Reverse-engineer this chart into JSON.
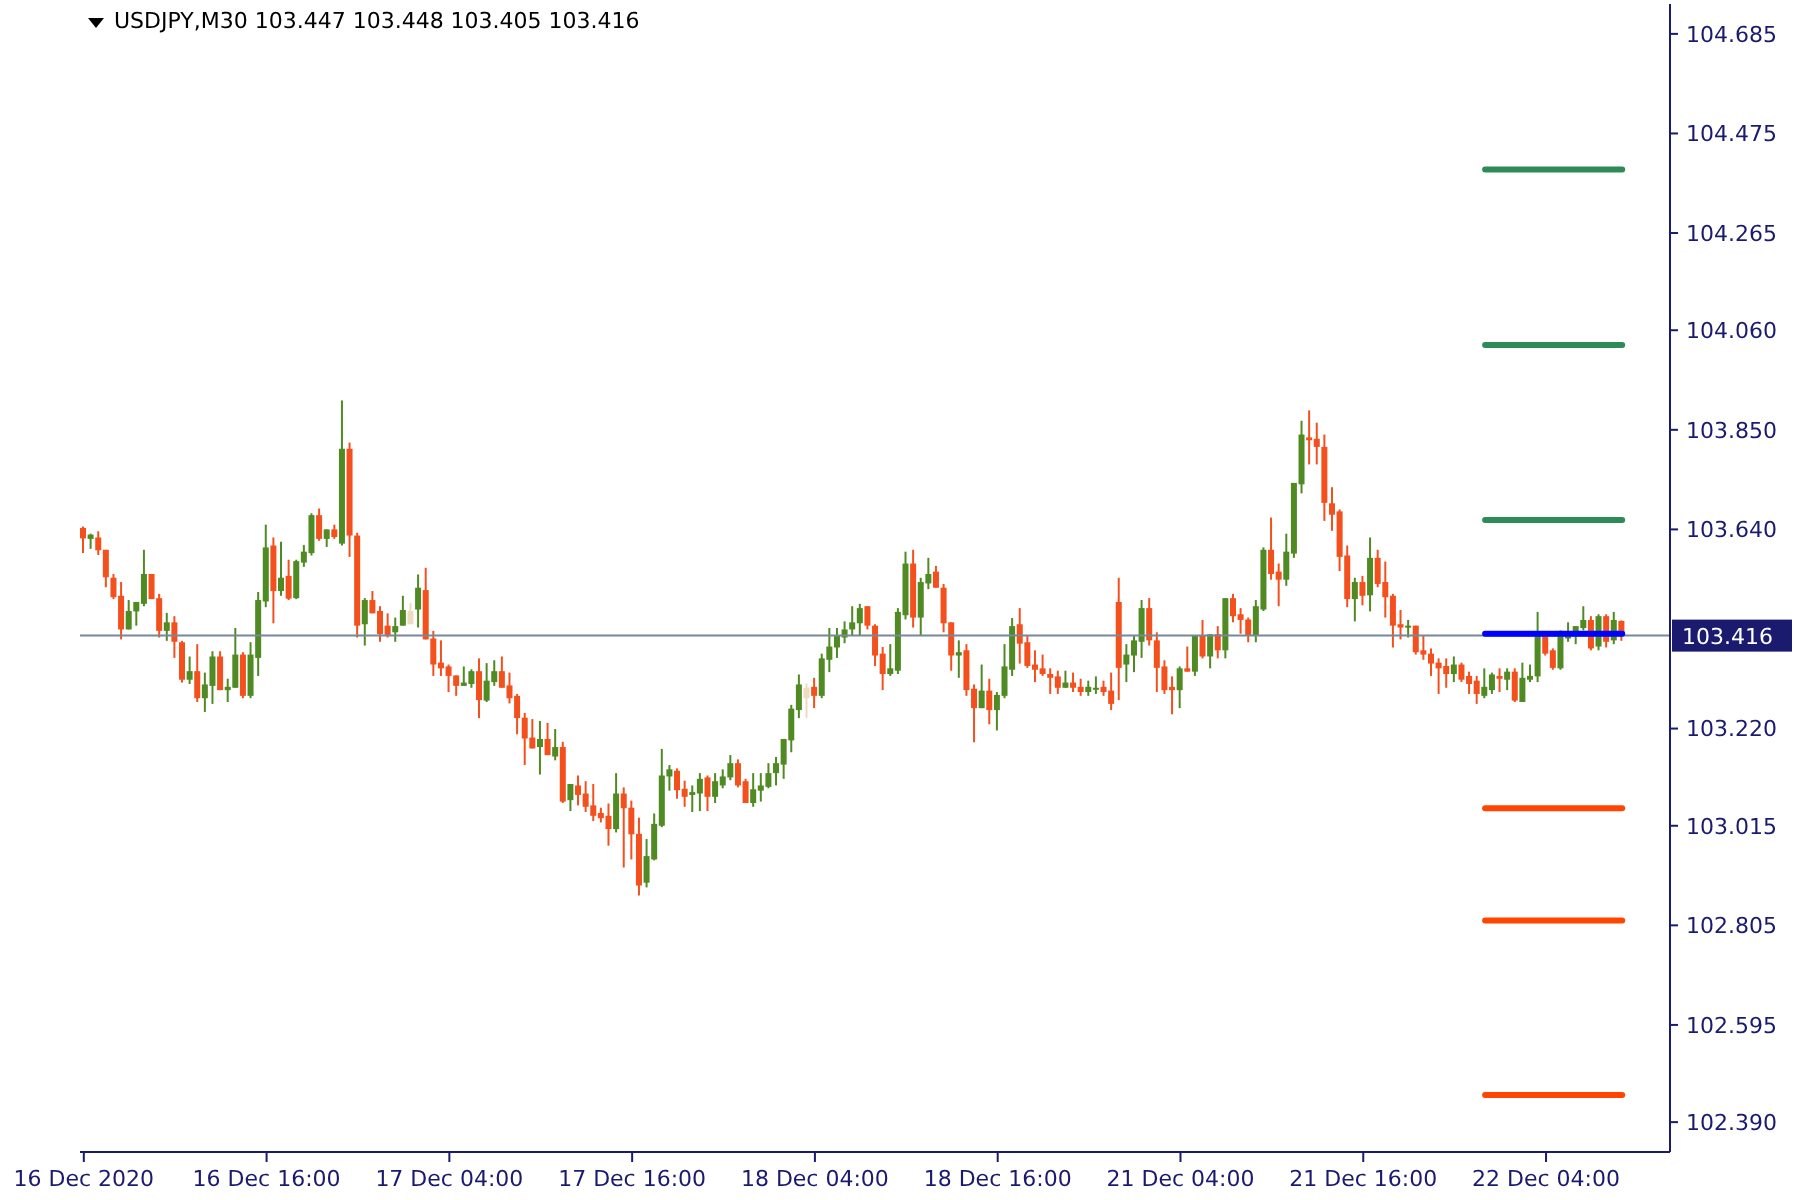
{
  "chart_data": {
    "type": "candlestick",
    "title": "USDJPY,M30 103.447 103.448 103.405 103.416",
    "categories": [
      "16 Dec 2020",
      null,
      null,
      null,
      null,
      null,
      null,
      null,
      null,
      null,
      null,
      null,
      null,
      null,
      null,
      null,
      null,
      null,
      null,
      null,
      null,
      null,
      null,
      null,
      "16 Dec 16:00",
      null,
      null,
      null,
      null,
      null,
      null,
      null,
      null,
      null,
      null,
      null,
      null,
      null,
      null,
      null,
      null,
      null,
      null,
      null,
      null,
      null,
      null,
      null,
      "17 Dec 04:00",
      null,
      null,
      null,
      null,
      null,
      null,
      null,
      null,
      null,
      null,
      null,
      null,
      null,
      null,
      null,
      null,
      null,
      null,
      null,
      null,
      null,
      null,
      null,
      "17 Dec 16:00",
      null,
      null,
      null,
      null,
      null,
      null,
      null,
      null,
      null,
      null,
      null,
      null,
      null,
      null,
      null,
      null,
      null,
      null,
      null,
      null,
      null,
      null,
      null,
      "18 Dec 04:00",
      null,
      null,
      null,
      null,
      null,
      null,
      null,
      null,
      null,
      null,
      null,
      null,
      null,
      null,
      null,
      null,
      null,
      null,
      null,
      null,
      null,
      null,
      null,
      "18 Dec 16:00",
      null,
      null,
      null,
      null,
      null,
      null,
      null,
      null,
      null,
      null,
      null,
      null,
      null,
      null,
      null,
      null,
      null,
      null,
      null,
      null,
      null,
      null,
      null,
      "21 Dec 04:00",
      null,
      null,
      null,
      null,
      null,
      null,
      null,
      null,
      null,
      null,
      null,
      null,
      null,
      null,
      null,
      null,
      null,
      null,
      null,
      null,
      null,
      null,
      null,
      "21 Dec 16:00",
      null,
      null,
      null,
      null,
      null,
      null,
      null,
      null,
      null,
      null,
      null,
      null,
      null,
      null,
      null,
      null,
      null,
      null,
      null,
      null,
      null,
      null,
      null,
      "22 Dec 04:00",
      null,
      null,
      null,
      null,
      null,
      null,
      null,
      null,
      null,
      null
    ],
    "ohlc": [
      [
        103.643,
        103.646,
        103.59,
        103.621
      ],
      [
        103.62,
        103.631,
        103.599,
        103.629
      ],
      [
        103.623,
        103.636,
        103.586,
        103.596
      ],
      [
        103.597,
        103.597,
        103.518,
        103.539
      ],
      [
        103.538,
        103.546,
        103.493,
        103.497
      ],
      [
        103.5,
        103.529,
        103.408,
        103.429
      ],
      [
        103.429,
        103.491,
        103.429,
        103.468
      ],
      [
        103.467,
        103.487,
        103.437,
        103.487
      ],
      [
        103.483,
        103.597,
        103.478,
        103.546
      ],
      [
        103.546,
        103.546,
        103.493,
        103.493
      ],
      [
        103.495,
        103.504,
        103.412,
        103.426
      ],
      [
        103.426,
        103.464,
        103.405,
        103.444
      ],
      [
        103.444,
        103.457,
        103.369,
        103.403
      ],
      [
        103.402,
        103.405,
        103.317,
        103.323
      ],
      [
        103.323,
        103.372,
        103.314,
        103.341
      ],
      [
        103.341,
        103.398,
        103.276,
        103.284
      ],
      [
        103.284,
        103.338,
        103.255,
        103.313
      ],
      [
        103.31,
        103.383,
        103.272,
        103.372
      ],
      [
        103.372,
        103.383,
        103.301,
        103.301
      ],
      [
        103.301,
        103.325,
        103.276,
        103.308
      ],
      [
        103.306,
        103.432,
        103.306,
        103.376
      ],
      [
        103.376,
        103.381,
        103.284,
        103.289
      ],
      [
        103.289,
        103.402,
        103.284,
        103.376
      ],
      [
        103.369,
        103.508,
        103.331,
        103.491
      ],
      [
        103.488,
        103.65,
        103.476,
        103.602
      ],
      [
        103.606,
        103.623,
        103.442,
        103.51
      ],
      [
        103.51,
        103.614,
        103.5,
        103.538
      ],
      [
        103.542,
        103.576,
        103.491,
        103.494
      ],
      [
        103.495,
        103.576,
        103.493,
        103.573
      ],
      [
        103.57,
        103.607,
        103.561,
        103.593
      ],
      [
        103.59,
        103.674,
        103.585,
        103.67
      ],
      [
        103.67,
        103.684,
        103.616,
        103.62
      ],
      [
        103.62,
        103.64,
        103.603,
        103.64
      ],
      [
        103.64,
        103.65,
        103.62,
        103.624
      ],
      [
        103.61,
        103.912,
        103.606,
        103.81
      ],
      [
        103.81,
        103.823,
        103.582,
        103.627
      ],
      [
        103.627,
        103.633,
        103.412,
        103.437
      ],
      [
        103.44,
        103.495,
        103.395,
        103.491
      ],
      [
        103.491,
        103.51,
        103.463,
        103.463
      ],
      [
        103.468,
        103.478,
        103.403,
        103.419
      ],
      [
        103.437,
        103.463,
        103.412,
        103.416
      ],
      [
        103.423,
        103.454,
        103.403,
        103.436
      ],
      [
        103.437,
        103.5,
        103.437,
        103.47
      ],
      [
        103.44,
        103.485,
        103.44,
        103.468
      ],
      [
        103.471,
        103.545,
        103.433,
        103.517
      ],
      [
        103.512,
        103.559,
        103.408,
        103.408
      ],
      [
        103.41,
        103.426,
        103.331,
        103.355
      ],
      [
        103.359,
        103.406,
        103.331,
        103.347
      ],
      [
        103.351,
        103.355,
        103.297,
        103.331
      ],
      [
        103.332,
        103.332,
        103.289,
        103.31
      ],
      [
        103.31,
        103.351,
        103.31,
        103.317
      ],
      [
        103.314,
        103.345,
        103.306,
        103.341
      ],
      [
        103.341,
        103.368,
        103.242,
        103.28
      ],
      [
        103.279,
        103.358,
        103.276,
        103.321
      ],
      [
        103.318,
        103.364,
        103.31,
        103.341
      ],
      [
        103.341,
        103.372,
        103.306,
        103.306
      ],
      [
        103.311,
        103.338,
        103.273,
        103.284
      ],
      [
        103.289,
        103.293,
        103.208,
        103.242
      ],
      [
        103.243,
        103.253,
        103.143,
        103.199
      ],
      [
        103.201,
        103.24,
        103.178,
        103.178
      ],
      [
        103.181,
        103.236,
        103.123,
        103.198
      ],
      [
        103.198,
        103.232,
        103.164,
        103.164
      ],
      [
        103.161,
        103.219,
        103.153,
        103.181
      ],
      [
        103.181,
        103.192,
        103.063,
        103.066
      ],
      [
        103.069,
        103.103,
        103.046,
        103.103
      ],
      [
        103.1,
        103.121,
        103.058,
        103.08
      ],
      [
        103.083,
        103.109,
        103.044,
        103.055
      ],
      [
        103.058,
        103.103,
        103.025,
        103.036
      ],
      [
        103.042,
        103.053,
        103.022,
        103.031
      ],
      [
        103.036,
        103.062,
        102.973,
        103.008
      ],
      [
        103.008,
        103.126,
        103.001,
        103.083
      ],
      [
        103.083,
        103.096,
        102.927,
        103.052
      ],
      [
        103.053,
        103.068,
        102.944,
        102.997
      ],
      [
        102.998,
        103.032,
        102.868,
        102.889
      ],
      [
        102.895,
        102.987,
        102.885,
        102.951
      ],
      [
        102.944,
        103.041,
        102.942,
        103.019
      ],
      [
        103.015,
        103.177,
        103.012,
        103.121
      ],
      [
        103.119,
        103.143,
        103.089,
        103.134
      ],
      [
        103.131,
        103.136,
        103.072,
        103.09
      ],
      [
        103.093,
        103.11,
        103.055,
        103.076
      ],
      [
        103.08,
        103.1,
        103.044,
        103.086
      ],
      [
        103.083,
        103.126,
        103.046,
        103.114
      ],
      [
        103.117,
        103.121,
        103.046,
        103.076
      ],
      [
        103.076,
        103.126,
        103.063,
        103.109
      ],
      [
        103.1,
        103.134,
        103.094,
        103.119
      ],
      [
        103.117,
        103.164,
        103.111,
        103.147
      ],
      [
        103.147,
        103.155,
        103.096,
        103.1
      ],
      [
        103.109,
        103.114,
        103.063,
        103.063
      ],
      [
        103.063,
        103.126,
        103.055,
        103.092
      ],
      [
        103.089,
        103.126,
        103.066,
        103.1
      ],
      [
        103.097,
        103.147,
        103.094,
        103.126
      ],
      [
        103.126,
        103.16,
        103.1,
        103.147
      ],
      [
        103.144,
        103.198,
        103.114,
        103.198
      ],
      [
        103.195,
        103.27,
        103.17,
        103.262
      ],
      [
        103.259,
        103.334,
        103.242,
        103.313
      ],
      [
        103.284,
        103.315,
        103.242,
        103.306
      ],
      [
        103.308,
        103.327,
        103.263,
        103.289
      ],
      [
        103.289,
        103.378,
        103.284,
        103.368
      ],
      [
        103.365,
        103.432,
        103.339,
        103.393
      ],
      [
        103.391,
        103.432,
        103.369,
        103.416
      ],
      [
        103.412,
        103.446,
        103.4,
        103.429
      ],
      [
        103.429,
        103.478,
        103.417,
        103.444
      ],
      [
        103.442,
        103.483,
        103.417,
        103.474
      ],
      [
        103.478,
        103.478,
        103.429,
        103.437
      ],
      [
        103.437,
        103.44,
        103.352,
        103.374
      ],
      [
        103.378,
        103.392,
        103.301,
        103.335
      ],
      [
        103.335,
        103.398,
        103.331,
        103.347
      ],
      [
        103.342,
        103.474,
        103.335,
        103.466
      ],
      [
        103.459,
        103.593,
        103.45,
        103.568
      ],
      [
        103.568,
        103.597,
        103.433,
        103.454
      ],
      [
        103.454,
        103.538,
        103.417,
        103.529
      ],
      [
        103.526,
        103.58,
        103.514,
        103.546
      ],
      [
        103.551,
        103.563,
        103.517,
        103.517
      ],
      [
        103.517,
        103.525,
        103.423,
        103.442
      ],
      [
        103.444,
        103.444,
        103.342,
        103.374
      ],
      [
        103.374,
        103.406,
        103.327,
        103.381
      ],
      [
        103.385,
        103.398,
        103.289,
        103.301
      ],
      [
        103.304,
        103.313,
        103.191,
        103.263
      ],
      [
        103.263,
        103.355,
        103.263,
        103.3
      ],
      [
        103.3,
        103.325,
        103.229,
        103.259
      ],
      [
        103.259,
        103.297,
        103.216,
        103.291
      ],
      [
        103.289,
        103.398,
        103.284,
        103.351
      ],
      [
        103.344,
        103.453,
        103.331,
        103.436
      ],
      [
        103.44,
        103.474,
        103.357,
        103.399
      ],
      [
        103.402,
        103.415,
        103.348,
        103.352
      ],
      [
        103.355,
        103.385,
        103.318,
        103.344
      ],
      [
        103.347,
        103.376,
        103.331,
        103.335
      ],
      [
        103.335,
        103.347,
        103.293,
        103.327
      ],
      [
        103.33,
        103.342,
        103.293,
        103.306
      ],
      [
        103.306,
        103.342,
        103.306,
        103.317
      ],
      [
        103.317,
        103.338,
        103.297,
        103.306
      ],
      [
        103.308,
        103.325,
        103.289,
        103.297
      ],
      [
        103.297,
        103.321,
        103.289,
        103.308
      ],
      [
        103.303,
        103.33,
        103.293,
        103.306
      ],
      [
        103.308,
        103.321,
        103.289,
        103.297
      ],
      [
        103.3,
        103.338,
        103.259,
        103.272
      ],
      [
        103.487,
        103.538,
        103.28,
        103.348
      ],
      [
        103.355,
        103.398,
        103.318,
        103.376
      ],
      [
        103.374,
        103.415,
        103.339,
        103.406
      ],
      [
        103.403,
        103.491,
        103.369,
        103.474
      ],
      [
        103.474,
        103.495,
        103.395,
        103.406
      ],
      [
        103.406,
        103.423,
        103.297,
        103.348
      ],
      [
        103.351,
        103.364,
        103.293,
        103.301
      ],
      [
        103.308,
        103.33,
        103.25,
        103.301
      ],
      [
        103.301,
        103.351,
        103.263,
        103.347
      ],
      [
        103.347,
        103.393,
        103.34,
        103.34
      ],
      [
        103.34,
        103.416,
        103.331,
        103.416
      ],
      [
        103.416,
        103.449,
        103.368,
        103.372
      ],
      [
        103.372,
        103.419,
        103.347,
        103.419
      ],
      [
        103.419,
        103.436,
        103.368,
        103.385
      ],
      [
        103.385,
        103.495,
        103.368,
        103.495
      ],
      [
        103.495,
        103.504,
        103.444,
        103.457
      ],
      [
        103.461,
        103.474,
        103.42,
        103.449
      ],
      [
        103.45,
        103.454,
        103.402,
        103.417
      ],
      [
        103.417,
        103.491,
        103.402,
        103.478
      ],
      [
        103.471,
        103.602,
        103.468,
        103.597
      ],
      [
        103.597,
        103.665,
        103.534,
        103.546
      ],
      [
        103.551,
        103.568,
        103.478,
        103.534
      ],
      [
        103.534,
        103.631,
        103.521,
        103.593
      ],
      [
        103.589,
        103.738,
        103.58,
        103.738
      ],
      [
        103.735,
        103.869,
        103.716,
        103.84
      ],
      [
        103.834,
        103.891,
        103.777,
        103.828
      ],
      [
        103.831,
        103.865,
        103.777,
        103.814
      ],
      [
        103.814,
        103.84,
        103.658,
        103.696
      ],
      [
        103.695,
        103.729,
        103.637,
        103.671
      ],
      [
        103.678,
        103.682,
        103.552,
        103.582
      ],
      [
        103.585,
        103.606,
        103.476,
        103.493
      ],
      [
        103.493,
        103.538,
        103.446,
        103.529
      ],
      [
        103.529,
        103.542,
        103.48,
        103.5
      ],
      [
        103.501,
        103.623,
        103.467,
        103.58
      ],
      [
        103.58,
        103.597,
        103.518,
        103.525
      ],
      [
        103.529,
        103.572,
        103.454,
        103.497
      ],
      [
        103.5,
        103.504,
        103.391,
        103.437
      ],
      [
        103.44,
        103.47,
        103.408,
        103.433
      ],
      [
        103.434,
        103.449,
        103.412,
        103.437
      ],
      [
        103.437,
        103.437,
        103.376,
        103.381
      ],
      [
        103.385,
        103.416,
        103.365,
        103.376
      ],
      [
        103.378,
        103.389,
        103.331,
        103.357
      ],
      [
        103.359,
        103.368,
        103.293,
        103.347
      ],
      [
        103.352,
        103.368,
        103.306,
        103.335
      ],
      [
        103.335,
        103.372,
        103.318,
        103.355
      ],
      [
        103.355,
        103.359,
        103.318,
        103.323
      ],
      [
        103.331,
        103.34,
        103.293,
        103.314
      ],
      [
        103.321,
        103.331,
        103.272,
        103.293
      ],
      [
        103.289,
        103.347,
        103.284,
        103.308
      ],
      [
        103.301,
        103.338,
        103.293,
        103.334
      ],
      [
        103.331,
        103.347,
        103.297,
        103.325
      ],
      [
        103.323,
        103.347,
        103.301,
        103.34
      ],
      [
        103.34,
        103.347,
        103.276,
        103.279
      ],
      [
        103.276,
        103.359,
        103.276,
        103.327
      ],
      [
        103.323,
        103.355,
        103.318,
        103.331
      ],
      [
        103.33,
        103.466,
        103.318,
        103.419
      ],
      [
        103.419,
        103.423,
        103.374,
        103.378
      ],
      [
        103.385,
        103.389,
        103.344,
        103.348
      ],
      [
        103.347,
        103.427,
        103.344,
        103.419
      ],
      [
        103.41,
        103.444,
        103.403,
        103.424
      ],
      [
        103.42,
        103.436,
        103.398,
        103.436
      ],
      [
        103.432,
        103.478,
        103.427,
        103.449
      ],
      [
        103.449,
        103.457,
        103.385,
        103.389
      ],
      [
        103.393,
        103.461,
        103.385,
        103.457
      ],
      [
        103.457,
        103.461,
        103.391,
        103.403
      ],
      [
        103.406,
        103.466,
        103.398,
        103.449
      ],
      [
        103.447,
        103.448,
        103.405,
        103.416
      ]
    ],
    "colors": [
      "#f4501e",
      "#4f8a22",
      "#f4501e",
      "#f4501e",
      "#f4501e",
      "#f4501e",
      "#4f8a22",
      "#4f8a22",
      "#4f8a22",
      "#f4501e",
      "#f4501e",
      "#4f8a22",
      "#f4501e",
      "#f4501e",
      "#4f8a22",
      "#f4501e",
      "#4f8a22",
      "#4f8a22",
      "#f4501e",
      "#4f8a22",
      "#4f8a22",
      "#f4501e",
      "#4f8a22",
      "#4f8a22",
      "#4f8a22",
      "#f4501e",
      "#4f8a22",
      "#f4501e",
      "#4f8a22",
      "#4f8a22",
      "#4f8a22",
      "#f4501e",
      "#4f8a22",
      "#f4501e",
      "#4f8a22",
      "#f4501e",
      "#f4501e",
      "#4f8a22",
      "#f4501e",
      "#f4501e",
      "#f4501e",
      "#4f8a22",
      "#4f8a22",
      "#ecdcc0",
      "#4f8a22",
      "#f4501e",
      "#f4501e",
      "#f4501e",
      "#f4501e",
      "#f4501e",
      "#4f8a22",
      "#4f8a22",
      "#f4501e",
      "#4f8a22",
      "#4f8a22",
      "#f4501e",
      "#f4501e",
      "#f4501e",
      "#f4501e",
      "#f4501e",
      "#4f8a22",
      "#f4501e",
      "#4f8a22",
      "#f4501e",
      "#4f8a22",
      "#f4501e",
      "#f4501e",
      "#f4501e",
      "#f4501e",
      "#f4501e",
      "#4f8a22",
      "#f4501e",
      "#f4501e",
      "#f4501e",
      "#4f8a22",
      "#4f8a22",
      "#4f8a22",
      "#4f8a22",
      "#f4501e",
      "#f4501e",
      "#4f8a22",
      "#4f8a22",
      "#f4501e",
      "#4f8a22",
      "#4f8a22",
      "#4f8a22",
      "#f4501e",
      "#f4501e",
      "#4f8a22",
      "#4f8a22",
      "#4f8a22",
      "#4f8a22",
      "#4f8a22",
      "#4f8a22",
      "#4f8a22",
      "#ecdcc0",
      "#f4501e",
      "#4f8a22",
      "#4f8a22",
      "#4f8a22",
      "#4f8a22",
      "#4f8a22",
      "#4f8a22",
      "#f4501e",
      "#f4501e",
      "#f4501e",
      "#4f8a22",
      "#4f8a22",
      "#4f8a22",
      "#f4501e",
      "#4f8a22",
      "#4f8a22",
      "#f4501e",
      "#f4501e",
      "#f4501e",
      "#4f8a22",
      "#f4501e",
      "#f4501e",
      "#4f8a22",
      "#f4501e",
      "#4f8a22",
      "#4f8a22",
      "#4f8a22",
      "#f4501e",
      "#f4501e",
      "#f4501e",
      "#f4501e",
      "#f4501e",
      "#f4501e",
      "#4f8a22",
      "#f4501e",
      "#f4501e",
      "#4f8a22",
      "#4f8a22",
      "#f4501e",
      "#f4501e",
      "#f4501e",
      "#4f8a22",
      "#4f8a22",
      "#4f8a22",
      "#f4501e",
      "#f4501e",
      "#f4501e",
      "#f4501e",
      "#4f8a22",
      "#f4501e",
      "#4f8a22",
      "#f4501e",
      "#4f8a22",
      "#f4501e",
      "#4f8a22",
      "#f4501e",
      "#f4501e",
      "#f4501e",
      "#4f8a22",
      "#4f8a22",
      "#f4501e",
      "#f4501e",
      "#4f8a22",
      "#4f8a22",
      "#4f8a22",
      "#f4501e",
      "#f4501e",
      "#f4501e",
      "#f4501e",
      "#f4501e",
      "#f4501e",
      "#4f8a22",
      "#f4501e",
      "#4f8a22",
      "#f4501e",
      "#f4501e",
      "#f4501e",
      "#f4501e",
      "#4f8a22",
      "#f4501e",
      "#f4501e",
      "#f4501e",
      "#f4501e",
      "#f4501e",
      "#4f8a22",
      "#f4501e",
      "#f4501e",
      "#f4501e",
      "#4f8a22",
      "#4f8a22",
      "#f4501e",
      "#4f8a22",
      "#f4501e",
      "#4f8a22",
      "#4f8a22",
      "#4f8a22",
      "#f4501e",
      "#f4501e",
      "#4f8a22",
      "#4f8a22",
      "#4f8a22",
      "#4f8a22",
      "#f4501e",
      "#4f8a22",
      "#f4501e",
      "#4f8a22",
      "#f4501e"
    ],
    "ylim": [
      102.327,
      104.748
    ],
    "yticks": [
      {
        "value": 102.39,
        "label": "102.390"
      },
      102.595,
      102.805,
      103.015,
      {
        "value": 103.22,
        "label": "103.220"
      },
      {
        "value": 103.64,
        "label": "103.640"
      },
      {
        "value": 103.85,
        "label": "103.850"
      },
      {
        "value": 104.06,
        "label": "104.060"
      },
      104.265,
      104.475,
      104.685
    ],
    "ref_lines": [
      {
        "axis": "y",
        "value": 103.416,
        "label": "103.416",
        "color": "#778899"
      },
      {
        "axis": "y",
        "value": 104.399,
        "color": "#2e8b57"
      },
      {
        "axis": "y",
        "value": 104.029,
        "color": "#2e8b57"
      },
      {
        "axis": "y",
        "value": 103.66,
        "color": "#2e8b57"
      },
      {
        "axis": "y",
        "value": 103.42,
        "color": "#0000ff"
      },
      {
        "axis": "y",
        "value": 103.052,
        "color": "#ff4500"
      },
      {
        "axis": "y",
        "value": 102.815,
        "color": "#ff4500"
      },
      {
        "axis": "y",
        "value": 102.447,
        "color": "#ff4500"
      }
    ]
  }
}
